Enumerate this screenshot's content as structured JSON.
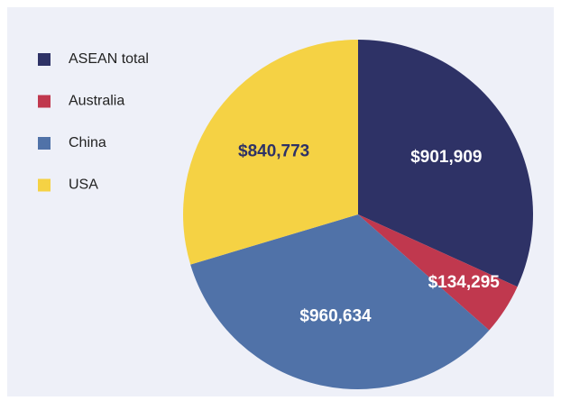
{
  "chart_data": {
    "type": "pie",
    "categories": [
      "ASEAN total",
      "Australia",
      "China",
      "USA"
    ],
    "values": [
      901909,
      134295,
      960634,
      840773
    ],
    "value_labels": [
      "$901,909",
      "$134,295",
      "$960,634",
      "$840,773"
    ],
    "colors": [
      "#2e3266",
      "#c0384e",
      "#5072a8",
      "#f5d244"
    ],
    "legend": "top-left"
  }
}
